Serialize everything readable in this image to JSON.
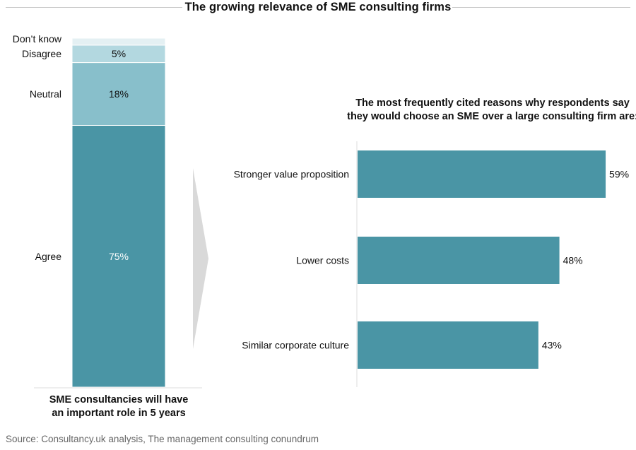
{
  "title": "The growing relevance of SME consulting firms",
  "source": "Source: Consultancy.uk analysis, The management consulting conundrum",
  "colors": {
    "agree": "#4a95a5",
    "neutral": "#88bfcb",
    "disagree": "#b3d8e0",
    "dont_know": "#e4f0f3",
    "bar": "#4a95a5",
    "arrow": "#d9d9d9",
    "axis": "#dddddd"
  },
  "chart_data": [
    {
      "type": "bar",
      "orientation": "vertical-stacked",
      "title": "SME consultancies will have an important role in 5 years",
      "title_lines": [
        "SME consultancies will have",
        "an important role in 5 years"
      ],
      "unit": "%",
      "series": [
        {
          "name": "Agree",
          "value": 75,
          "label": "75%"
        },
        {
          "name": "Neutral",
          "value": 18,
          "label": "18%"
        },
        {
          "name": "Disagree",
          "value": 5,
          "label": "5%"
        },
        {
          "name": "Don’t know",
          "value": 2,
          "label": ""
        }
      ],
      "ylim": [
        0,
        100
      ],
      "grid": false,
      "legend": "none"
    },
    {
      "type": "bar",
      "orientation": "horizontal",
      "title": "The most frequently cited reasons why respondents say they would choose an SME over a large consulting firm are:",
      "title_lines": [
        "The most frequently cited reasons why respondents say",
        "they would choose an SME over a large consulting firm are:"
      ],
      "categories": [
        "Stronger value proposition",
        "Lower costs",
        "Similar corporate culture"
      ],
      "values": [
        59,
        48,
        43
      ],
      "labels": [
        "59%",
        "48%",
        "43%"
      ],
      "unit": "%",
      "xlim": [
        0,
        59
      ],
      "grid": false,
      "legend": "none"
    }
  ]
}
